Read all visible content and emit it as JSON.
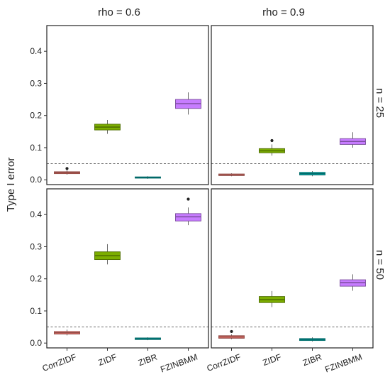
{
  "chart_data": {
    "type": "boxplot",
    "ylabel": "Type I error",
    "columns": [
      "rho = 0.6",
      "rho = 0.9"
    ],
    "rows": [
      "n = 25",
      "n = 50"
    ],
    "categories": [
      "CorrZIDF",
      "ZIDF",
      "ZIBR",
      "FZINBMM"
    ],
    "colors": [
      "#E8766D",
      "#7CAE00",
      "#00A9A8",
      "#C77CFF"
    ],
    "reference_line": 0.05,
    "ylim": [
      -0.015,
      0.48
    ],
    "yticks": [
      0.0,
      0.1,
      0.2,
      0.3,
      0.4
    ],
    "ytick_labels": [
      "0.0",
      "0.1",
      "0.2",
      "0.3",
      "0.4"
    ],
    "panels": [
      {
        "row": 0,
        "col": 0,
        "boxes": [
          {
            "low": 0.016,
            "q1": 0.019,
            "median": 0.022,
            "q3": 0.025,
            "high": 0.029,
            "outliers": [
              0.035
            ]
          },
          {
            "low": 0.143,
            "q1": 0.155,
            "median": 0.164,
            "q3": 0.173,
            "high": 0.186,
            "outliers": []
          },
          {
            "low": 0.003,
            "q1": 0.005,
            "median": 0.007,
            "q3": 0.009,
            "high": 0.011,
            "outliers": []
          },
          {
            "low": 0.203,
            "q1": 0.222,
            "median": 0.237,
            "q3": 0.25,
            "high": 0.272,
            "outliers": []
          }
        ]
      },
      {
        "row": 0,
        "col": 1,
        "boxes": [
          {
            "low": 0.011,
            "q1": 0.013,
            "median": 0.015,
            "q3": 0.018,
            "high": 0.02,
            "outliers": []
          },
          {
            "low": 0.075,
            "q1": 0.084,
            "median": 0.09,
            "q3": 0.097,
            "high": 0.11,
            "outliers": [
              0.122
            ]
          },
          {
            "low": 0.011,
            "q1": 0.015,
            "median": 0.019,
            "q3": 0.023,
            "high": 0.027,
            "outliers": []
          },
          {
            "low": 0.1,
            "q1": 0.11,
            "median": 0.119,
            "q3": 0.128,
            "high": 0.148,
            "outliers": []
          }
        ]
      },
      {
        "row": 1,
        "col": 0,
        "boxes": [
          {
            "low": 0.024,
            "q1": 0.028,
            "median": 0.032,
            "q3": 0.036,
            "high": 0.042,
            "outliers": []
          },
          {
            "low": 0.245,
            "q1": 0.26,
            "median": 0.272,
            "q3": 0.284,
            "high": 0.308,
            "outliers": []
          },
          {
            "low": 0.009,
            "q1": 0.011,
            "median": 0.013,
            "q3": 0.016,
            "high": 0.018,
            "outliers": []
          },
          {
            "low": 0.367,
            "q1": 0.38,
            "median": 0.393,
            "q3": 0.403,
            "high": 0.422,
            "outliers": [
              0.448
            ]
          }
        ]
      },
      {
        "row": 1,
        "col": 1,
        "boxes": [
          {
            "low": 0.012,
            "q1": 0.015,
            "median": 0.019,
            "q3": 0.023,
            "high": 0.027,
            "outliers": [
              0.036
            ]
          },
          {
            "low": 0.112,
            "q1": 0.126,
            "median": 0.135,
            "q3": 0.145,
            "high": 0.162,
            "outliers": []
          },
          {
            "low": 0.005,
            "q1": 0.008,
            "median": 0.011,
            "q3": 0.014,
            "high": 0.018,
            "outliers": []
          },
          {
            "low": 0.163,
            "q1": 0.177,
            "median": 0.188,
            "q3": 0.197,
            "high": 0.214,
            "outliers": []
          }
        ]
      }
    ]
  }
}
